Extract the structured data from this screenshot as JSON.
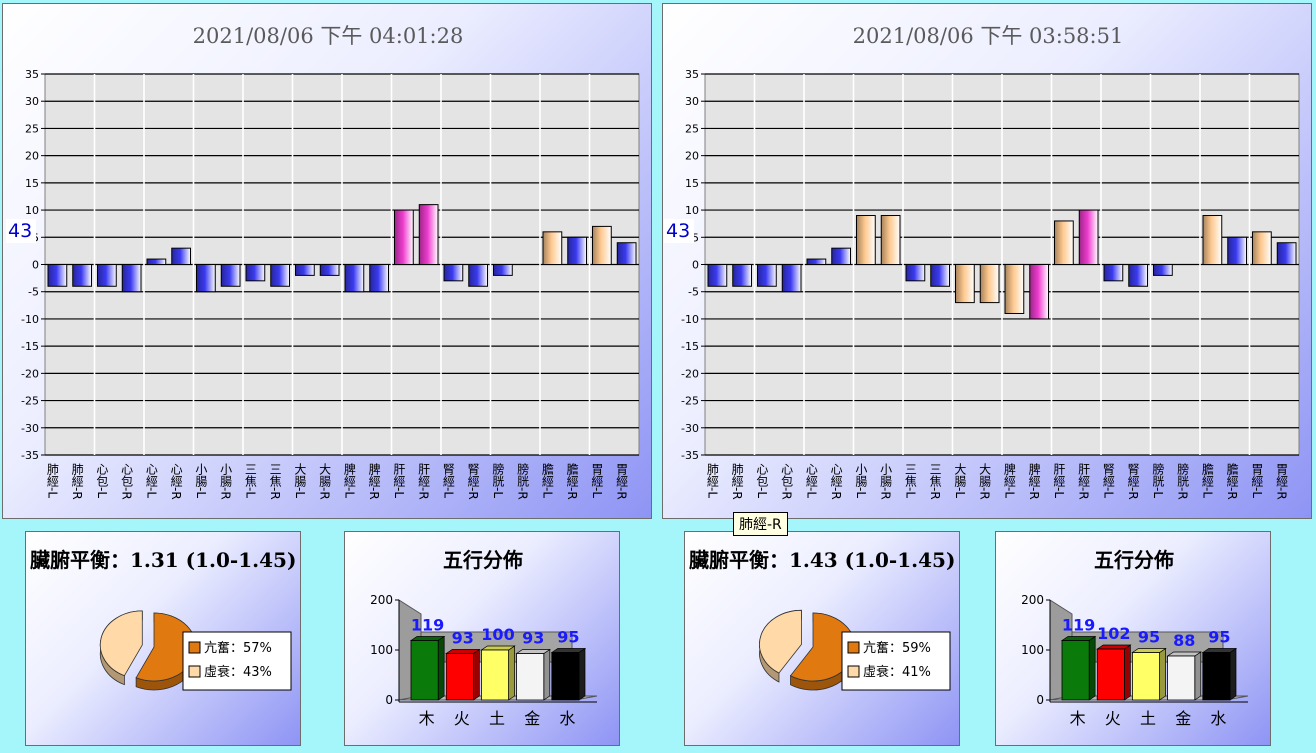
{
  "meridian_labels": [
    "肺經-L",
    "肺經-R",
    "心包-L",
    "心包-R",
    "心經-L",
    "心經-R",
    "小腸-L",
    "小腸-R",
    "三焦-L",
    "三焦-R",
    "大腸-L",
    "大腸-R",
    "脾經-L",
    "脾經-R",
    "肝經-L",
    "肝經-R",
    "腎經-L",
    "腎經-R",
    "膀胱-L",
    "膀胱-R",
    "膽經-L",
    "膽經-R",
    "胃經-L",
    "胃經-R"
  ],
  "tooltip": "肺經-R",
  "colors": {
    "blue": "#3a3af0",
    "peach": "#ffc98f",
    "magenta": "#ee3ccf",
    "orange": "#e07a10",
    "light_peach": "#ffd9a8",
    "green": "#0a7a0a",
    "red": "#ff0000",
    "yellow": "#ffff66",
    "white": "#f4f4f4",
    "black": "#000000"
  },
  "left": {
    "bar_panel": {
      "title": "2021/08/06 下午 04:01:28",
      "side_value": "43"
    },
    "balance": {
      "title": "臟腑平衡：1.31 (1.0-1.45)",
      "legend": [
        {
          "label": "亢奮：57%",
          "color": "orange"
        },
        {
          "label": "虛衰：43%",
          "color": "light_peach"
        }
      ]
    },
    "wuxing": {
      "title": "五行分佈"
    }
  },
  "right": {
    "bar_panel": {
      "title": "2021/08/06 下午 03:58:51",
      "side_value": "43"
    },
    "balance": {
      "title": "臟腑平衡：1.43 (1.0-1.45)",
      "legend": [
        {
          "label": "亢奮：59%",
          "color": "orange"
        },
        {
          "label": "虛衰：41%",
          "color": "light_peach"
        }
      ]
    },
    "wuxing": {
      "title": "五行分佈"
    }
  },
  "chart_data": [
    {
      "type": "bar",
      "title": "2021/08/06 下午 04:01:28",
      "ylim": [
        -35,
        35
      ],
      "yticks": [
        35,
        30,
        25,
        20,
        15,
        10,
        5,
        0,
        -5,
        -10,
        -15,
        -20,
        -25,
        -30,
        -35
      ],
      "categories": [
        "肺經-L",
        "肺經-R",
        "心包-L",
        "心包-R",
        "心經-L",
        "心經-R",
        "小腸-L",
        "小腸-R",
        "三焦-L",
        "三焦-R",
        "大腸-L",
        "大腸-R",
        "脾經-L",
        "脾經-R",
        "肝經-L",
        "肝經-R",
        "腎經-L",
        "腎經-R",
        "膀胱-L",
        "膀胱-R",
        "膽經-L",
        "膽經-R",
        "胃經-L",
        "胃經-R"
      ],
      "values": [
        -4,
        -4,
        -4,
        -5,
        1,
        3,
        -5,
        -4,
        -3,
        -4,
        -2,
        -2,
        -5,
        -5,
        10,
        11,
        -3,
        -4,
        -2,
        0,
        6,
        5,
        7,
        4
      ],
      "bar_colors": [
        "blue",
        "blue",
        "blue",
        "blue",
        "blue",
        "blue",
        "blue",
        "blue",
        "blue",
        "blue",
        "blue",
        "blue",
        "blue",
        "blue",
        "magenta",
        "magenta",
        "blue",
        "blue",
        "blue",
        "blue",
        "peach",
        "blue",
        "peach",
        "blue"
      ]
    },
    {
      "type": "bar",
      "title": "2021/08/06 下午 03:58:51",
      "ylim": [
        -35,
        35
      ],
      "yticks": [
        35,
        30,
        25,
        20,
        15,
        10,
        5,
        0,
        -5,
        -10,
        -15,
        -20,
        -25,
        -30,
        -35
      ],
      "categories": [
        "肺經-L",
        "肺經-R",
        "心包-L",
        "心包-R",
        "心經-L",
        "心經-R",
        "小腸-L",
        "小腸-R",
        "三焦-L",
        "三焦-R",
        "大腸-L",
        "大腸-R",
        "脾經-L",
        "脾經-R",
        "肝經-L",
        "肝經-R",
        "腎經-L",
        "腎經-R",
        "膀胱-L",
        "膀胱-R",
        "膽經-L",
        "膽經-R",
        "胃經-L",
        "胃經-R"
      ],
      "values": [
        -4,
        -4,
        -4,
        -5,
        1,
        3,
        9,
        9,
        -3,
        -4,
        -7,
        -7,
        -9,
        -10,
        8,
        10,
        -3,
        -4,
        -2,
        0,
        9,
        5,
        6,
        4
      ],
      "bar_colors": [
        "blue",
        "blue",
        "blue",
        "blue",
        "blue",
        "blue",
        "peach",
        "peach",
        "blue",
        "blue",
        "peach",
        "peach",
        "peach",
        "magenta",
        "peach",
        "magenta",
        "blue",
        "blue",
        "blue",
        "blue",
        "peach",
        "blue",
        "peach",
        "blue"
      ]
    },
    {
      "type": "pie",
      "title": "臟腑平衡：1.31 (1.0-1.45)",
      "slices": [
        {
          "name": "亢奮",
          "value": 57,
          "color": "orange"
        },
        {
          "name": "虛衰",
          "value": 43,
          "color": "light_peach"
        }
      ]
    },
    {
      "type": "bar",
      "title": "五行分佈",
      "categories": [
        "木",
        "火",
        "土",
        "金",
        "水"
      ],
      "values": [
        119,
        93,
        100,
        93,
        95
      ],
      "ylim": [
        0,
        200
      ],
      "yticks": [
        0,
        100,
        200
      ],
      "bar_colors": [
        "green",
        "red",
        "yellow",
        "white",
        "black"
      ]
    },
    {
      "type": "pie",
      "title": "臟腑平衡：1.43 (1.0-1.45)",
      "slices": [
        {
          "name": "亢奮",
          "value": 59,
          "color": "orange"
        },
        {
          "name": "虛衰",
          "value": 41,
          "color": "light_peach"
        }
      ]
    },
    {
      "type": "bar",
      "title": "五行分佈",
      "categories": [
        "木",
        "火",
        "土",
        "金",
        "水"
      ],
      "values": [
        119,
        102,
        95,
        88,
        95
      ],
      "ylim": [
        0,
        200
      ],
      "yticks": [
        0,
        100,
        200
      ],
      "bar_colors": [
        "green",
        "red",
        "yellow",
        "white",
        "black"
      ]
    }
  ]
}
